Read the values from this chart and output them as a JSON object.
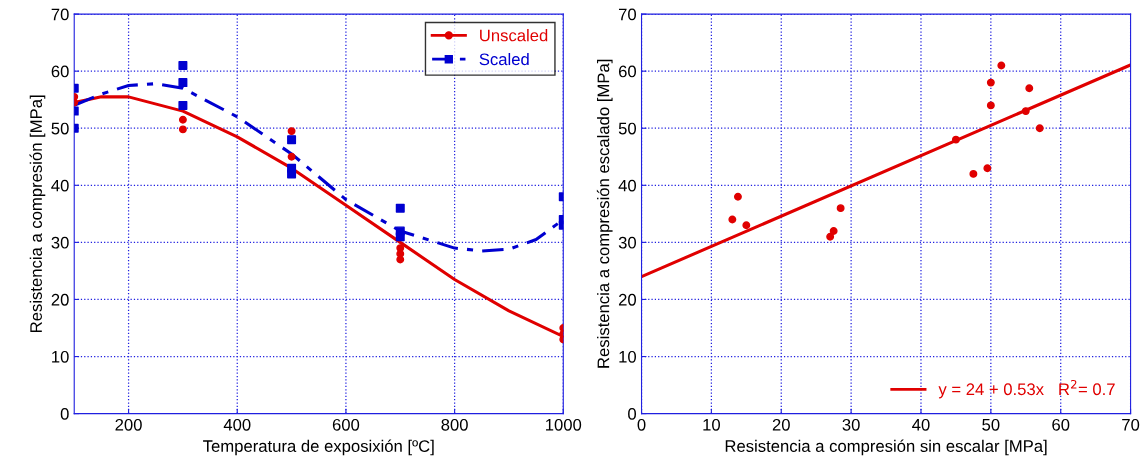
{
  "chart_data": [
    {
      "type": "scatter",
      "xlabel": "Temperatura de exposixión [ºC]",
      "ylabel": "Resistencia a compresión [MPa]",
      "xlim": [
        100,
        1000
      ],
      "xticks": [
        200,
        400,
        600,
        800,
        1000
      ],
      "ylim": [
        0,
        70
      ],
      "yticks": [
        0,
        10,
        20,
        30,
        40,
        50,
        60,
        70
      ],
      "grid": true,
      "legend": "top right",
      "series": [
        {
          "name": "Unscaled",
          "marker": "circle",
          "color": "#e00000",
          "x": [
            100,
            100,
            300,
            300,
            500,
            500,
            700,
            700,
            700,
            1000,
            1000,
            1000
          ],
          "values": [
            54.5,
            55.5,
            51.5,
            49.8,
            49.5,
            45,
            29,
            28,
            27,
            15,
            14,
            13
          ]
        },
        {
          "type": "line",
          "line_style": "solid",
          "color": "#e00000",
          "x": [
            100,
            150,
            200,
            300,
            400,
            500,
            600,
            700,
            800,
            900,
            1000
          ],
          "values": [
            54.5,
            55.5,
            55.5,
            53,
            48.5,
            43,
            36.5,
            30,
            23.5,
            18,
            13.5
          ]
        },
        {
          "name": "Scaled",
          "marker": "square",
          "color": "#0000d0",
          "x": [
            100,
            100,
            100,
            300,
            300,
            300,
            500,
            500,
            500,
            700,
            700,
            700,
            1000,
            1000,
            1000
          ],
          "values": [
            57,
            53,
            50,
            61,
            58,
            54,
            48,
            43,
            42,
            36,
            32,
            31,
            38,
            34,
            33
          ]
        },
        {
          "type": "line",
          "line_style": "dashed",
          "color": "#0000d0",
          "x": [
            100,
            150,
            200,
            250,
            300,
            400,
            500,
            600,
            700,
            800,
            850,
            900,
            950,
            1000
          ],
          "values": [
            54,
            56,
            57.5,
            57.8,
            57,
            52,
            45.5,
            37.5,
            32,
            29,
            28.5,
            28.8,
            30.5,
            34
          ]
        }
      ]
    },
    {
      "type": "scatter",
      "xlabel": "Resistencia a compresión sin escalar [MPa]",
      "ylabel": "Resistencia a compresión escalado [MPa]",
      "xlim": [
        0,
        70
      ],
      "xticks": [
        0,
        10,
        20,
        30,
        40,
        50,
        60,
        70
      ],
      "ylim": [
        0,
        70
      ],
      "yticks": [
        0,
        10,
        20,
        30,
        40,
        50,
        60,
        70
      ],
      "grid": true,
      "legend": "bottom right",
      "series": [
        {
          "marker": "circle",
          "color": "#e00000",
          "x": [
            13,
            13.8,
            15,
            27,
            27.5,
            28.5,
            45,
            47.5,
            49.5,
            50,
            50,
            51.5,
            55,
            55.5,
            57
          ],
          "values": [
            34,
            38,
            33,
            31,
            32,
            36,
            48,
            42,
            43,
            54,
            58,
            61,
            53,
            57,
            50
          ]
        },
        {
          "name": "y = 24 + 0.53x   R$^{2}$= 0.7",
          "type": "line",
          "line_style": "solid",
          "color": "#e00000",
          "x": [
            0,
            70
          ],
          "values": [
            24,
            61.1
          ]
        }
      ]
    }
  ]
}
